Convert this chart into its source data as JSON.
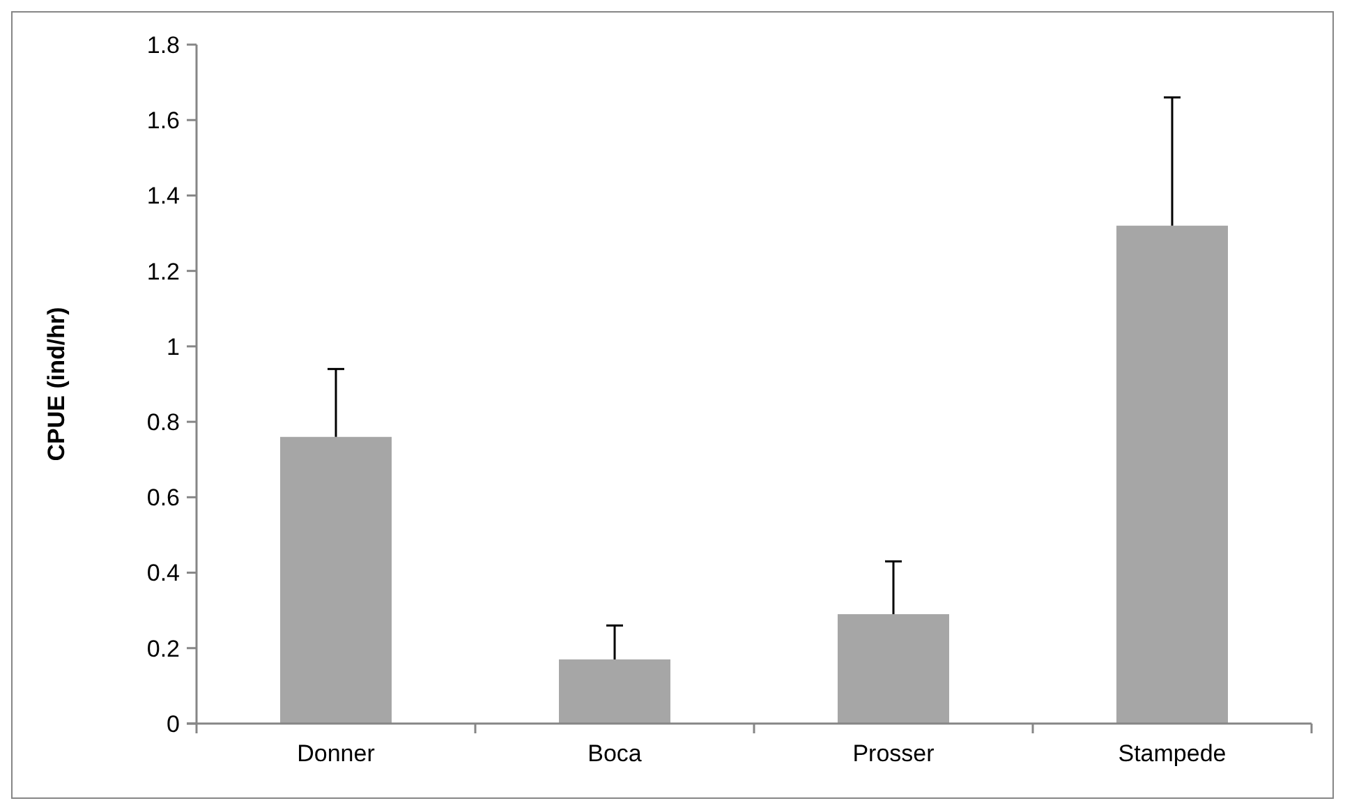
{
  "chart_data": {
    "type": "bar",
    "ylabel": "CPUE (ind/hr)",
    "categories": [
      "Donner",
      "Boca",
      "Prosser",
      "Stampede"
    ],
    "values": [
      0.76,
      0.17,
      0.29,
      1.32
    ],
    "errors": [
      [
        0.76,
        0.94
      ],
      [
        0.17,
        0.26
      ],
      [
        0.29,
        0.43
      ],
      [
        1.32,
        1.66
      ]
    ],
    "color": "#a6a6a6",
    "ylim": [
      0,
      1.8
    ],
    "yticks": [
      0,
      0.2,
      0.4,
      0.6,
      0.8,
      1,
      1.2,
      1.4,
      1.6,
      1.8
    ],
    "grid": false
  }
}
